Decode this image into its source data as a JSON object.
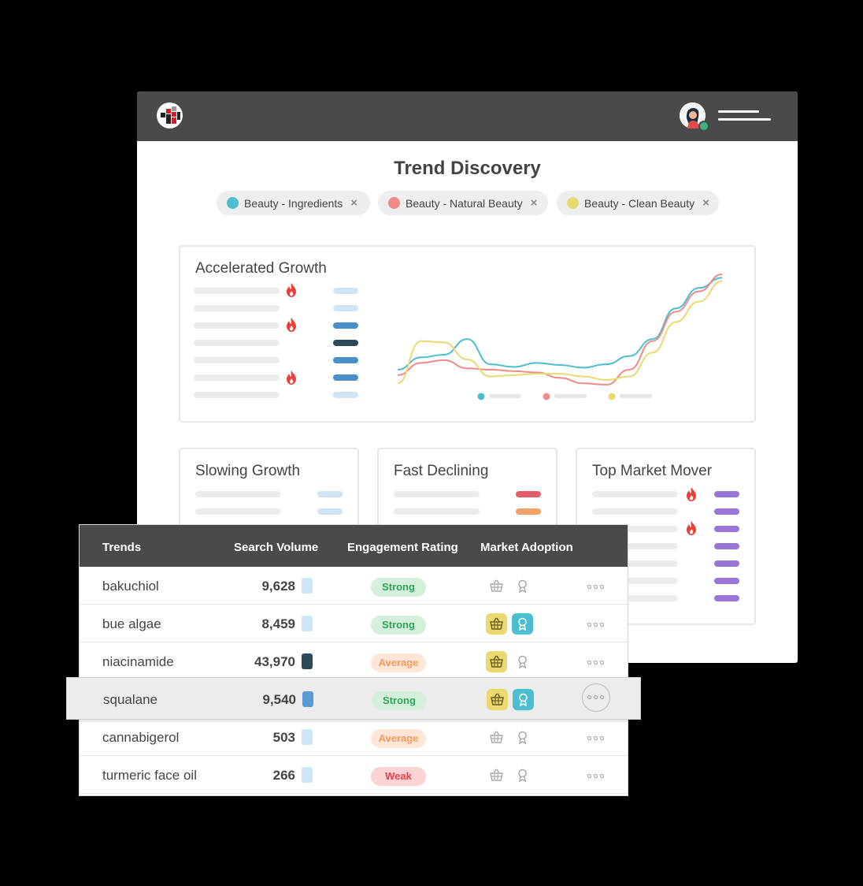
{
  "page": {
    "title": "Trend Discovery",
    "icons": {
      "logo": "app-logo-icon",
      "avatar": "user-avatar-icon",
      "menu": "menu-lines-icon"
    }
  },
  "filters": [
    {
      "label": "Beauty - Ingredients",
      "color": "#4bbecf"
    },
    {
      "label": "Beauty - Natural Beauty",
      "color": "#ef8a87"
    },
    {
      "label": "Beauty - Clean Beauty",
      "color": "#ead970"
    }
  ],
  "cards": {
    "accelerated": {
      "title": "Accelerated Growth"
    },
    "slowing": {
      "title": "Slowing Growth"
    },
    "declining": {
      "title": "Fast Declining"
    },
    "mover": {
      "title": "Top Market Mover"
    }
  },
  "chart_data": {
    "type": "line",
    "title": "",
    "xlabel": "",
    "ylabel": "",
    "x": [
      0,
      1,
      2,
      3,
      4,
      5,
      6,
      7,
      8,
      9,
      10,
      11,
      12,
      13,
      14
    ],
    "series": [
      {
        "color": "#4bbecf",
        "values": [
          30,
          48,
          52,
          75,
          38,
          34,
          40,
          37,
          33,
          38,
          50,
          75,
          120,
          150,
          165
        ]
      },
      {
        "color": "#ef8a87",
        "values": [
          22,
          40,
          44,
          32,
          30,
          28,
          26,
          18,
          10,
          8,
          30,
          72,
          115,
          145,
          170
        ]
      },
      {
        "color": "#ead970",
        "values": [
          10,
          72,
          70,
          45,
          20,
          22,
          24,
          24,
          20,
          15,
          20,
          55,
          100,
          130,
          160
        ]
      }
    ]
  },
  "table": {
    "headers": [
      "Trends",
      "Search Volume",
      "Engagement Rating",
      "Market Adoption"
    ],
    "rows": [
      {
        "trend": "bakuchiol",
        "volume": "9,628",
        "vol_color": "#cfe4f7",
        "rating": "Strong",
        "rating_style": "strong",
        "basket": false,
        "award": false
      },
      {
        "trend": "bue algae",
        "volume": "8,459",
        "vol_color": "#cfe4f7",
        "rating": "Strong",
        "rating_style": "strong",
        "basket": true,
        "award": true
      },
      {
        "trend": "niacinamide",
        "volume": "43,970",
        "vol_color": "#2e4a5a",
        "rating": "Average",
        "rating_style": "average",
        "basket": true,
        "award": false
      },
      {
        "trend": "squalane",
        "volume": "9,540",
        "vol_color": "#5b9bd5",
        "rating": "Strong",
        "rating_style": "strong",
        "basket": true,
        "award": true,
        "highlighted": true
      },
      {
        "trend": "cannabigerol",
        "volume": "503",
        "vol_color": "#cfe4f7",
        "rating": "Average",
        "rating_style": "average",
        "basket": false,
        "award": false
      },
      {
        "trend": "turmeric face oil",
        "volume": "266",
        "vol_color": "#cfe4f7",
        "rating": "Weak",
        "rating_style": "weak",
        "basket": false,
        "award": false
      }
    ]
  }
}
